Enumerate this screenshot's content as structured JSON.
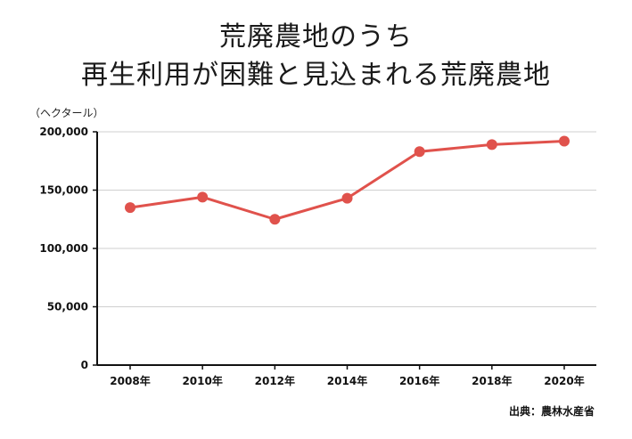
{
  "title_line1": "荒廃農地のうち",
  "title_line2": "再生利用が困難と見込まれる荒廃農地",
  "unit_label": "（ヘクタール）",
  "source_label": "出典：農林水産省",
  "line_color": "#e0524c",
  "chart_data": {
    "type": "line",
    "title": "荒廃農地のうち 再生利用が困難と見込まれる荒廃農地",
    "xlabel": "",
    "ylabel": "（ヘクタール）",
    "categories": [
      "2008年",
      "2010年",
      "2012年",
      "2014年",
      "2016年",
      "2018年",
      "2020年"
    ],
    "series": [
      {
        "values": [
          135000,
          144000,
          125000,
          143000,
          183000,
          189000,
          192000
        ]
      }
    ],
    "ylim": [
      0,
      200000
    ],
    "yticks": [
      0,
      50000,
      100000,
      150000,
      200000
    ],
    "ytick_labels": [
      "0",
      "50,000",
      "100,000",
      "150,000",
      "200,000"
    ],
    "grid": true,
    "legend": "none"
  }
}
